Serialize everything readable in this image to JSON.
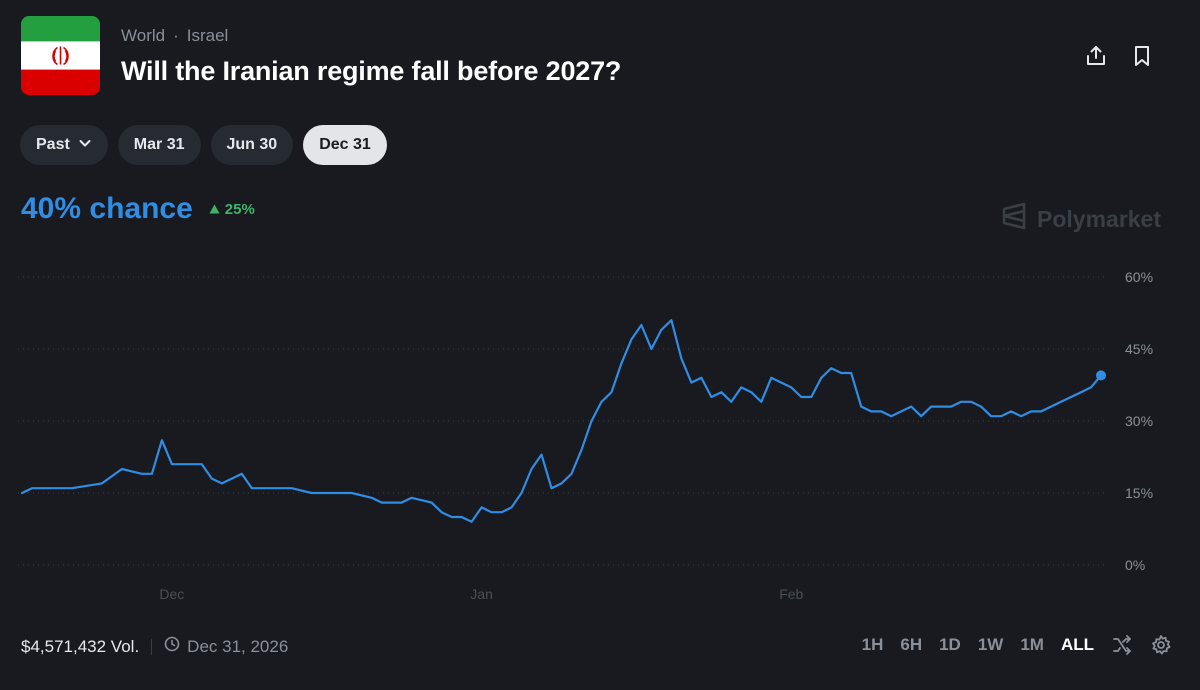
{
  "header": {
    "breadcrumb": [
      "World",
      "·",
      "Israel"
    ],
    "title": "Will the Iranian regime fall before 2027?"
  },
  "icons": [
    "share-icon",
    "bookmark-icon",
    "chevron-down-icon",
    "triangle-up-icon",
    "polymarket-logo-icon",
    "clock-icon",
    "shuffle-icon",
    "gear-icon"
  ],
  "date_pills": [
    {
      "label": "Past",
      "has_chevron": true,
      "active": false
    },
    {
      "label": "Mar 31",
      "active": false
    },
    {
      "label": "Jun 30",
      "active": false
    },
    {
      "label": "Dec 31",
      "active": true
    }
  ],
  "summary": {
    "chance": "40% chance",
    "delta": "25%",
    "brand": "Polymarket"
  },
  "colors": {
    "background": "#181a1f",
    "line": "#2f8de4",
    "positive": "#3db468",
    "grid": "#3a3e45",
    "muted": "#8a9099"
  },
  "chart_data": {
    "type": "line",
    "title": "",
    "xlabel": "",
    "ylabel": "",
    "ylim": [
      0,
      60
    ],
    "yticks": [
      0,
      15,
      30,
      45,
      60
    ],
    "ytick_labels": [
      "0%",
      "15%",
      "30%",
      "45%",
      "60%"
    ],
    "xtick_labels": [
      "Dec",
      "Jan",
      "Feb"
    ],
    "xtick_day": [
      15,
      46,
      77
    ],
    "grid": true,
    "series": [
      {
        "name": "",
        "day": [
          0,
          1,
          3,
          5,
          8,
          10,
          12,
          13,
          14,
          15,
          16,
          17,
          18,
          19,
          20,
          21,
          22,
          23,
          24,
          25,
          27,
          29,
          30,
          32,
          33,
          35,
          36,
          38,
          39,
          41,
          42,
          43,
          44,
          45,
          46,
          47,
          48,
          49,
          50,
          51,
          52,
          53,
          54,
          55,
          56,
          57,
          58,
          59,
          60,
          61,
          62,
          63,
          64,
          65,
          66,
          67,
          68,
          69,
          70,
          71,
          72,
          73,
          74,
          75,
          76,
          77,
          78,
          79,
          80,
          81,
          82,
          83,
          84,
          85,
          86,
          87,
          88,
          89,
          90,
          91,
          92,
          93,
          94,
          95,
          96,
          97,
          98,
          99,
          100,
          101,
          102,
          103,
          104,
          105,
          106,
          107,
          108
        ],
        "value": [
          15,
          16,
          16,
          16,
          17,
          20,
          19,
          19,
          26,
          21,
          21,
          21,
          21,
          18,
          17,
          18,
          19,
          16,
          16,
          16,
          16,
          15,
          15,
          15,
          15,
          14,
          13,
          13,
          14,
          13,
          11,
          10,
          10,
          9,
          12,
          11,
          11,
          12,
          15,
          20,
          23,
          16,
          17,
          19,
          24,
          30,
          34,
          36,
          42,
          47,
          50,
          45,
          49,
          51,
          43,
          38,
          39,
          35,
          36,
          34,
          37,
          36,
          34,
          39,
          38,
          37,
          35,
          35,
          39,
          41,
          40,
          40,
          33,
          32,
          32,
          31,
          32,
          33,
          31,
          33,
          33,
          33,
          34,
          34,
          33,
          31,
          31,
          32,
          31,
          32,
          32,
          33,
          34,
          35,
          36,
          37,
          39.5
        ]
      }
    ],
    "current_point_day": 108,
    "current_point_value": 39.5
  },
  "footer": {
    "volume": "$4,571,432 Vol.",
    "end_date": "Dec 31, 2026",
    "ranges": [
      "1H",
      "6H",
      "1D",
      "1W",
      "1M",
      "ALL"
    ],
    "active_range": "ALL"
  }
}
